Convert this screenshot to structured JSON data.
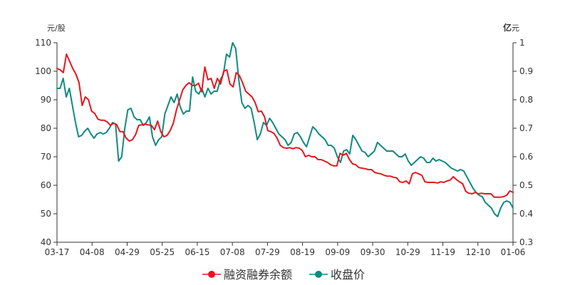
{
  "chart_data": {
    "type": "line",
    "left_unit": "元/股",
    "right_unit_bold": "亿",
    "right_unit_rest": "元",
    "x_tick_labels": [
      "03-17",
      "04-08",
      "04-29",
      "05-25",
      "06-15",
      "07-08",
      "07-29",
      "08-19",
      "09-09",
      "09-30",
      "10-29",
      "11-19",
      "12-10",
      "01-06"
    ],
    "left_axis": {
      "min": 40,
      "max": 110,
      "ticks": [
        40,
        50,
        60,
        70,
        80,
        90,
        100,
        110
      ]
    },
    "right_axis": {
      "min": 0.3,
      "max": 1.0,
      "ticks": [
        "0.3",
        "0.4",
        "0.5",
        "0.6",
        "0.7",
        "0.8",
        "0.9",
        "1"
      ]
    },
    "grid": false,
    "legend_position": "bottom",
    "series": [
      {
        "name": "融资融券余额",
        "axis": "right",
        "color": "#e6161e",
        "values": [
          0.91,
          0.905,
          0.895,
          0.96,
          0.935,
          0.91,
          0.89,
          0.86,
          0.78,
          0.81,
          0.8,
          0.76,
          0.752,
          0.732,
          0.728,
          0.728,
          0.722,
          0.71,
          0.718,
          0.712,
          0.688,
          0.688,
          0.665,
          0.655,
          0.66,
          0.678,
          0.71,
          0.712,
          0.714,
          0.712,
          0.71,
          0.695,
          0.725,
          0.688,
          0.67,
          0.675,
          0.692,
          0.718,
          0.765,
          0.8,
          0.835,
          0.85,
          0.86,
          0.85,
          0.85,
          0.858,
          0.828,
          0.915,
          0.87,
          0.875,
          0.84,
          0.875,
          0.855,
          0.9,
          0.905,
          0.855,
          0.845,
          0.895,
          0.885,
          0.86,
          0.83,
          0.82,
          0.81,
          0.79,
          0.758,
          0.76,
          0.74,
          0.692,
          0.688,
          0.682,
          0.665,
          0.64,
          0.632,
          0.63,
          0.632,
          0.628,
          0.632,
          0.63,
          0.622,
          0.6,
          0.605,
          0.6,
          0.6,
          0.59,
          0.59,
          0.585,
          0.58,
          0.572,
          0.568,
          0.568,
          0.612,
          0.605,
          0.612,
          0.59,
          0.575,
          0.572,
          0.562,
          0.56,
          0.558,
          0.555,
          0.555,
          0.545,
          0.542,
          0.54,
          0.535,
          0.532,
          0.532,
          0.528,
          0.526,
          0.512,
          0.51,
          0.515,
          0.505,
          0.54,
          0.545,
          0.54,
          0.535,
          0.512,
          0.51,
          0.51,
          0.51,
          0.508,
          0.512,
          0.51,
          0.515,
          0.518,
          0.53,
          0.52,
          0.512,
          0.505,
          0.478,
          0.472,
          0.47,
          0.475,
          0.47,
          0.472,
          0.47,
          0.47,
          0.47,
          0.458,
          0.458,
          0.458,
          0.46,
          0.465,
          0.48,
          0.475
        ]
      },
      {
        "name": "收盘价",
        "axis": "left",
        "color": "#0f8a80",
        "values": [
          94,
          94,
          97.5,
          91,
          94,
          88,
          82,
          77,
          77.5,
          79,
          80,
          78,
          76.5,
          78,
          78.5,
          78,
          78.5,
          80,
          82,
          81.5,
          68.5,
          70,
          80,
          86.5,
          87,
          84,
          83,
          83,
          81,
          82,
          84,
          77,
          74,
          76,
          77,
          85,
          88,
          91,
          89,
          92,
          87.5,
          85,
          86,
          86,
          98,
          93,
          92,
          94,
          91,
          94,
          92,
          93,
          93,
          97,
          99,
          106,
          105,
          110,
          108,
          97,
          89,
          87,
          88,
          87,
          82,
          76,
          78,
          82,
          81,
          83.5,
          82,
          80,
          78,
          77,
          76,
          74,
          75,
          78,
          78.5,
          77,
          75,
          73.5,
          77,
          80.5,
          79.5,
          78,
          77,
          76,
          74,
          74,
          73,
          70,
          68,
          72,
          72.5,
          71,
          77.5,
          76,
          74,
          72,
          71.5,
          70,
          71,
          72,
          75,
          74,
          73,
          72,
          72,
          72,
          71,
          70,
          70,
          71,
          68.5,
          67,
          68,
          69,
          70,
          69.5,
          68,
          68,
          69.5,
          68.5,
          69,
          68.5,
          68,
          67,
          66,
          65.5,
          65,
          65.5,
          65,
          63,
          61,
          59,
          57.5,
          56.5,
          56,
          54,
          53,
          52,
          50,
          49,
          52,
          54,
          54.5,
          54,
          52
        ]
      }
    ]
  }
}
